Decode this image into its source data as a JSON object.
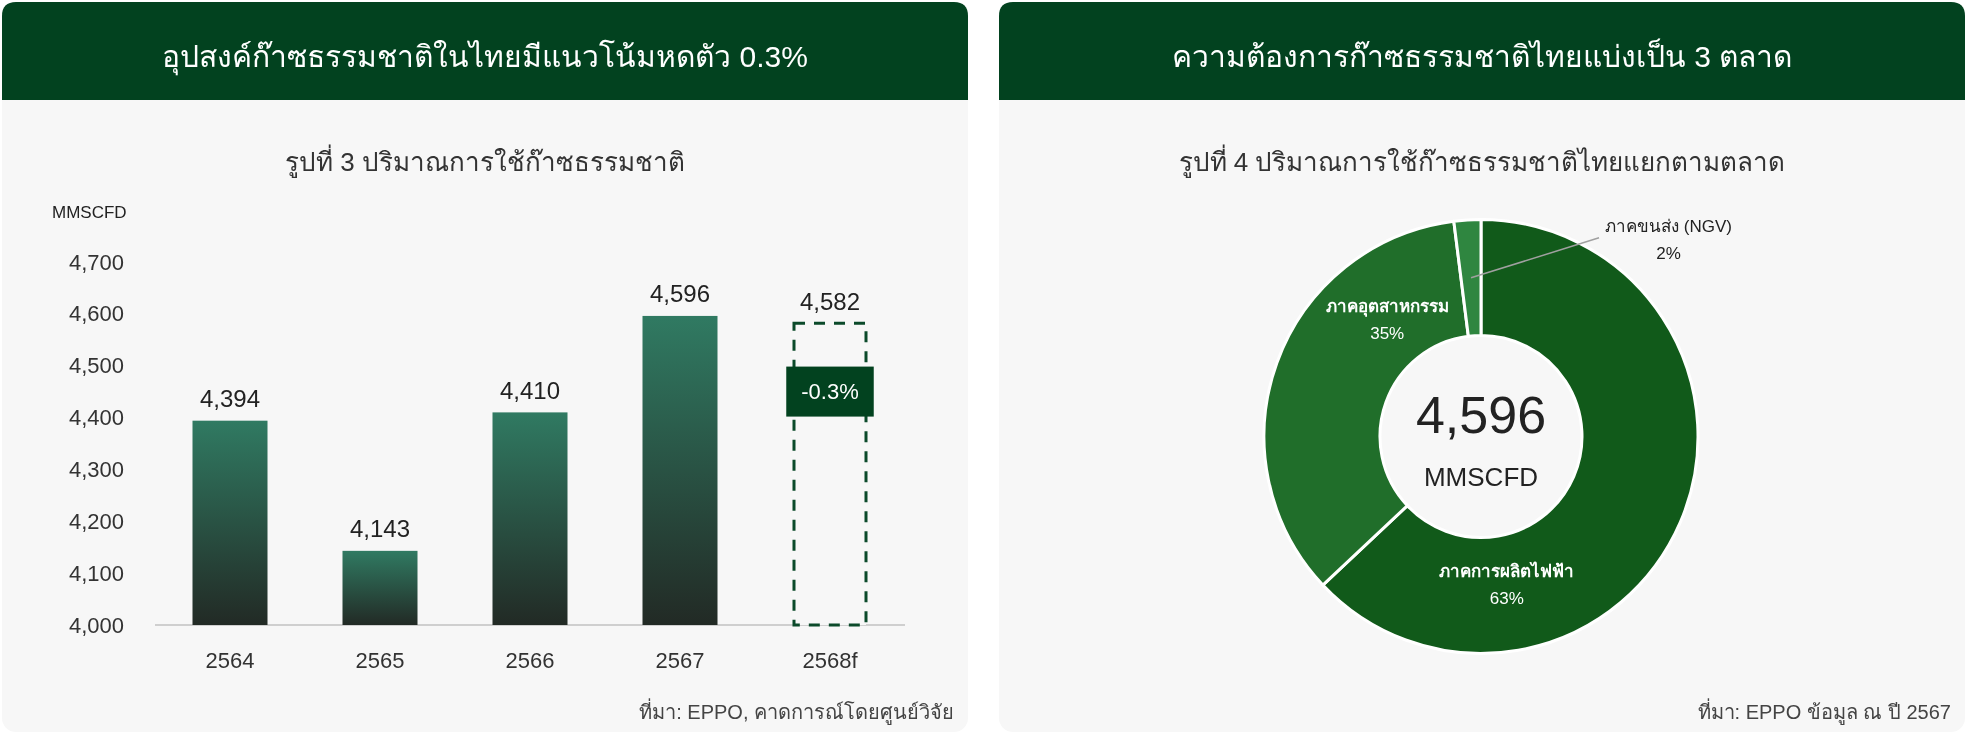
{
  "chart_data": [
    {
      "type": "bar",
      "title": "อุปสงค์ก๊าซธรรมชาติในไทยมีแนวโน้มหดตัว 0.3%",
      "subtitle": "รูปที่ 3 ปริมาณการใช้ก๊าซธรรมชาติ",
      "ylabel": "MMSCFD",
      "categories": [
        "2564",
        "2565",
        "2566",
        "2567",
        "2568f"
      ],
      "series": [
        {
          "color": "#307a62",
          "values": [
            4394,
            4143,
            4410,
            4596,
            null
          ],
          "value_labels": [
            "4,394",
            "4,143",
            "4,410",
            "4,596",
            null
          ]
        },
        {
          "color": "#0b4a2a",
          "line_style": "dashed",
          "values": [
            null,
            null,
            null,
            null,
            4582
          ],
          "value_labels": [
            null,
            null,
            null,
            null,
            "4,582"
          ]
        }
      ],
      "ylim": [
        4000,
        4700
      ],
      "yticks": [
        {
          "value": 4000,
          "label": "4,000"
        },
        {
          "value": 4100,
          "label": "4,100"
        },
        {
          "value": 4200,
          "label": "4,200"
        },
        {
          "value": 4300,
          "label": "4,300"
        },
        {
          "value": 4400,
          "label": "4,400"
        },
        {
          "value": 4500,
          "label": "4,500"
        },
        {
          "value": 4600,
          "label": "4,600"
        },
        {
          "value": 4700,
          "label": "4,700"
        }
      ],
      "annotations": [
        "-0.3%",
        "ที่มา: EPPO, คาดการณ์โดยศูนย์วิจัย"
      ]
    },
    {
      "type": "donut",
      "title": "ความต้องการก๊าซธรรมชาติไทยแบ่งเป็น 3 ตลาด",
      "subtitle": "รูปที่ 4 ปริมาณการใช้ก๊าซธรรมชาติไทยแยกตามตลาด",
      "categories": [
        "ภาคการผลิตไฟฟ้า",
        "ภาคอุตสาหกรรม",
        "ภาคขนส่ง (NGV)"
      ],
      "values": [
        63,
        35,
        2
      ],
      "colors": [
        "#115a1a",
        "#206e2a",
        "#2f8640"
      ],
      "value_labels": [
        "63%",
        "35%",
        "2%"
      ],
      "annotations": [
        "4,596",
        "MMSCFD",
        "ที่มา: EPPO ข้อมูล ณ ปี 2567"
      ]
    }
  ]
}
